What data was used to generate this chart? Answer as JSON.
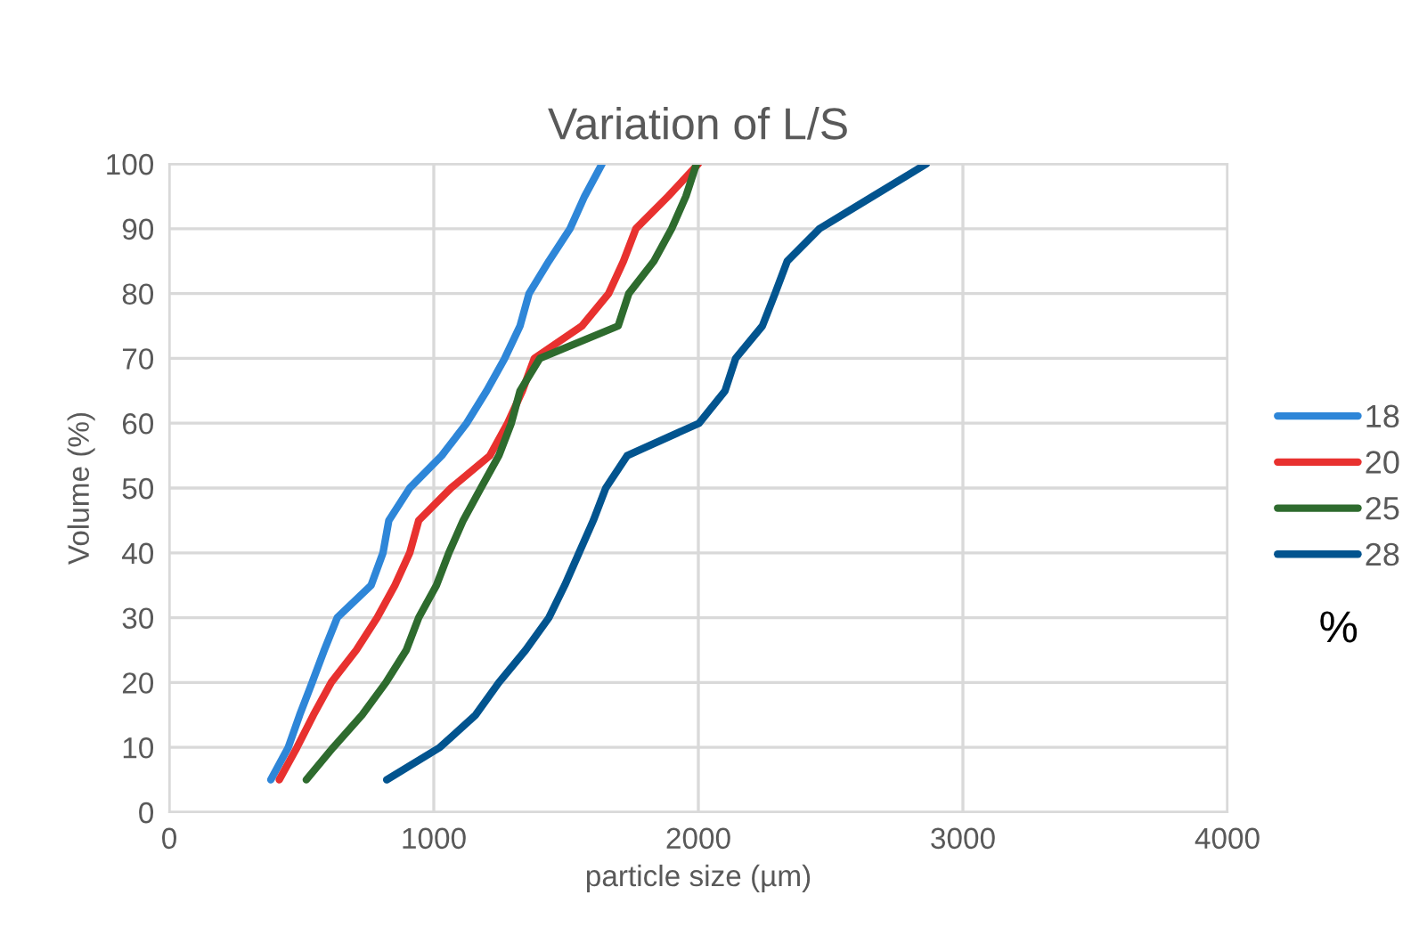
{
  "chart_data": {
    "type": "line",
    "title": "Variation of L/S",
    "xlabel": "particle size (µm)",
    "ylabel": "Volume (%)",
    "xlim": [
      0,
      4000
    ],
    "xticks": [
      0,
      1000,
      2000,
      3000,
      4000
    ],
    "ylim": [
      0,
      100
    ],
    "yticks": [
      0,
      10,
      20,
      30,
      40,
      50,
      60,
      70,
      80,
      90,
      100
    ],
    "grid": true,
    "legend": "right",
    "marker": "none",
    "line_style": "solid",
    "annotations": [
      "%"
    ],
    "series": [
      {
        "name": "18",
        "color": "#2e86d8",
        "x": [
          384,
          450,
          493,
          540,
          586,
          635,
          763,
          808,
          830,
          909,
          1030,
          1124,
          1200,
          1268,
          1326,
          1360,
          1435,
          1515,
          1570,
          1636
        ],
        "values": [
          5,
          10,
          15,
          20,
          25,
          30,
          35,
          40,
          45,
          50,
          55,
          60,
          65,
          70,
          75,
          80,
          85,
          90,
          95,
          100
        ]
      },
      {
        "name": "20",
        "color": "#e8312f",
        "x": [
          416,
          483,
          545,
          612,
          707,
          786,
          853,
          909,
          943,
          1065,
          1212,
          1279,
          1335,
          1380,
          1560,
          1661,
          1717,
          1764,
          1886,
          2000
        ],
        "values": [
          5,
          10,
          15,
          20,
          25,
          30,
          35,
          40,
          45,
          50,
          55,
          60,
          65,
          70,
          75,
          80,
          85,
          90,
          95,
          100
        ]
      },
      {
        "name": "25",
        "color": "#2e6b2e",
        "x": [
          518,
          620,
          729,
          819,
          896,
          943,
          1010,
          1057,
          1111,
          1178,
          1246,
          1293,
          1326,
          1401,
          1697,
          1737,
          1832,
          1899,
          1953,
          1993
        ],
        "values": [
          5,
          10,
          15,
          20,
          25,
          30,
          35,
          40,
          45,
          50,
          55,
          60,
          65,
          70,
          75,
          80,
          85,
          90,
          95,
          100
        ]
      },
      {
        "name": "28",
        "color": "#02548f",
        "x": [
          822,
          1023,
          1158,
          1246,
          1347,
          1435,
          1495,
          1549,
          1603,
          1650,
          1731,
          2003,
          2101,
          2141,
          2242,
          2290,
          2336,
          2458,
          2660,
          2862
        ],
        "values": [
          5,
          10,
          15,
          20,
          25,
          30,
          35,
          40,
          45,
          50,
          55,
          60,
          65,
          70,
          75,
          80,
          85,
          90,
          95,
          100
        ]
      }
    ]
  }
}
